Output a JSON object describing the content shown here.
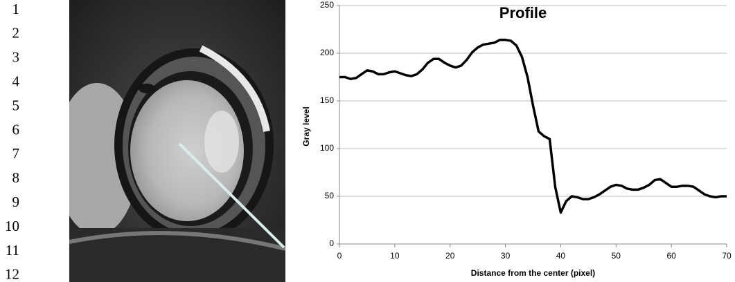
{
  "line_numbers": [
    "1",
    "2",
    "3",
    "4",
    "5",
    "6",
    "7",
    "8",
    "9",
    "10",
    "11",
    "12"
  ],
  "chart_data": {
    "type": "line",
    "title": "Profile",
    "x_label": "Distance from the center (pixel)",
    "y_label": "Gray level",
    "x": [
      0,
      1,
      2,
      3,
      4,
      5,
      6,
      7,
      8,
      9,
      10,
      11,
      12,
      13,
      14,
      15,
      16,
      17,
      18,
      19,
      20,
      21,
      22,
      23,
      24,
      25,
      26,
      27,
      28,
      29,
      30,
      31,
      32,
      33,
      34,
      35,
      36,
      37,
      38,
      39,
      40,
      41,
      42,
      43,
      44,
      45,
      46,
      47,
      48,
      49,
      50,
      51,
      52,
      53,
      54,
      55,
      56,
      57,
      58,
      59,
      60,
      61,
      62,
      63,
      64,
      65,
      66,
      67,
      68,
      69,
      70
    ],
    "series": [
      {
        "name": "Profile",
        "color": "#000000",
        "values": [
          175,
          175,
          173,
          174,
          178,
          182,
          181,
          178,
          178,
          180,
          181,
          179,
          177,
          176,
          178,
          183,
          190,
          194,
          194,
          190,
          187,
          185,
          187,
          193,
          201,
          206,
          209,
          210,
          211,
          214,
          214,
          213,
          208,
          196,
          175,
          145,
          118,
          113,
          110,
          60,
          33,
          45,
          50,
          49,
          47,
          47,
          49,
          52,
          56,
          60,
          62,
          61,
          58,
          57,
          57,
          59,
          62,
          67,
          68,
          64,
          60,
          60,
          61,
          61,
          60,
          56,
          52,
          50,
          49,
          50,
          50
        ]
      }
    ],
    "xlim": [
      0,
      70
    ],
    "xticks": [
      0,
      10,
      20,
      30,
      40,
      50,
      60,
      70
    ],
    "ylim": [
      0,
      250
    ],
    "yticks": [
      0,
      50,
      100,
      150,
      200,
      250
    ],
    "grid": true
  }
}
